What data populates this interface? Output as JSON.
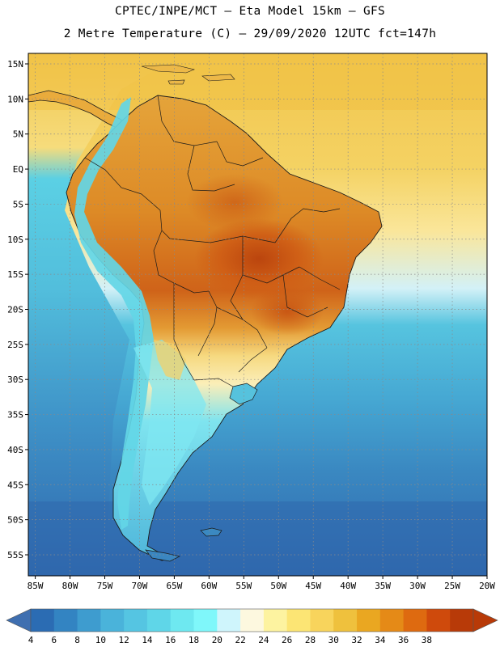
{
  "header": {
    "line1": "CPTEC/INPE/MCT —  Eta Model 15km — GFS",
    "line2": "2 Metre Temperature (C) — 29/09/2020 12UTC fct=147h"
  },
  "axes": {
    "lat_labels": [
      "15N",
      "10N",
      "5N",
      "EQ",
      "5S",
      "10S",
      "15S",
      "20S",
      "25S",
      "30S",
      "35S",
      "40S",
      "45S",
      "50S",
      "55S"
    ],
    "lon_labels": [
      "85W",
      "80W",
      "75W",
      "70W",
      "65W",
      "60W",
      "55W",
      "50W",
      "45W",
      "40W",
      "35W",
      "30W",
      "25W",
      "20W"
    ],
    "lat_values": [
      15,
      10,
      5,
      0,
      -5,
      -10,
      -15,
      -20,
      -25,
      -30,
      -35,
      -40,
      -45,
      -50,
      -55
    ],
    "lon_values": [
      -85,
      -80,
      -75,
      -70,
      -65,
      -60,
      -55,
      -50,
      -45,
      -40,
      -35,
      -30,
      -25,
      -20
    ],
    "lat_range": [
      -58,
      16.5
    ],
    "lon_range": [
      -86,
      -20
    ]
  },
  "colorbar": {
    "labels": [
      "4",
      "6",
      "8",
      "10",
      "12",
      "14",
      "16",
      "18",
      "20",
      "22",
      "24",
      "26",
      "28",
      "30",
      "32",
      "34",
      "36",
      "38"
    ],
    "colors": [
      "#2b6cb3",
      "#3384c2",
      "#3e9ccf",
      "#4ab3da",
      "#55c5e2",
      "#5fd6e8",
      "#6ee8f0",
      "#7ff7fa",
      "#cff5fc",
      "#fdf8df",
      "#fdf3a0",
      "#fce574",
      "#f8d45c",
      "#efc13d",
      "#eaa721",
      "#e58a17",
      "#de6a10",
      "#cf4a0c",
      "#b83a08"
    ],
    "under_color": "#3f6fb0",
    "over_color": "#b83a08"
  },
  "legend": {
    "land_warm": "#e29e35",
    "land_hot": "#cc5d17",
    "land_cool": "#f4d471",
    "ocean_warm": "#f2cc57",
    "ocean_cool": "#53c3df",
    "ocean_cold": "#2e6cb1",
    "andes": "#63d6e6"
  }
}
